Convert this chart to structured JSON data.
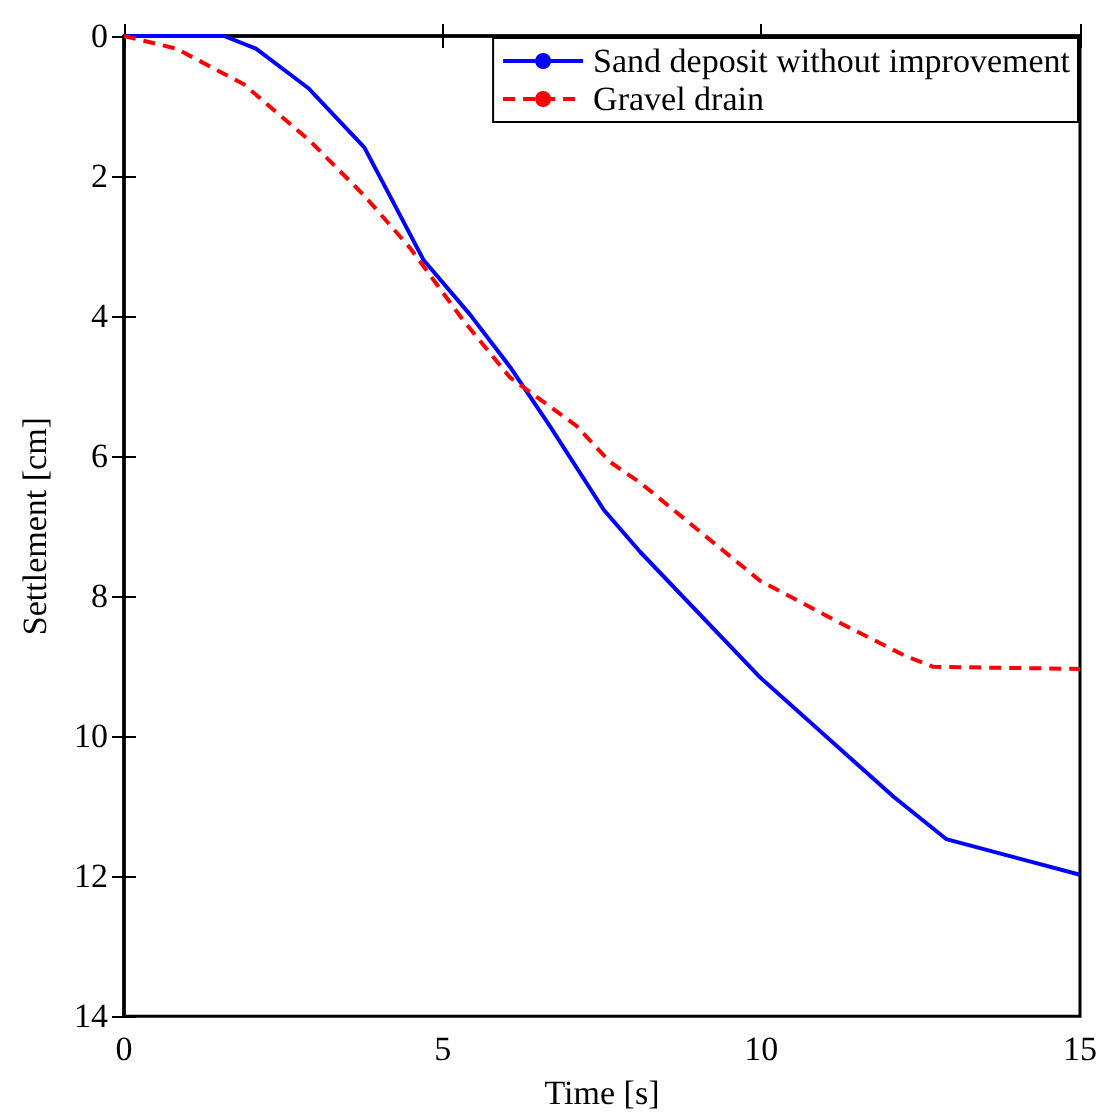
{
  "chart_data": {
    "type": "line",
    "xlabel": "Time [s]",
    "ylabel": "Settlement [cm]",
    "xlim": [
      0,
      15
    ],
    "xticks": [
      0,
      5,
      10,
      15
    ],
    "ylim": [
      14,
      0
    ],
    "yticks": [
      0,
      2,
      4,
      6,
      8,
      10,
      12,
      14
    ],
    "grid": false,
    "legend": "top right",
    "marker": "none",
    "series": [
      {
        "name": "Sand deposit without improvement",
        "color": "#0000ff",
        "line_style": "solid",
        "x": [
          0,
          1.57,
          2.07,
          2.9,
          3.77,
          4.17,
          4.7,
          5.43,
          6.06,
          6.68,
          7.53,
          8.1,
          9.98,
          12.08,
          12.9,
          15
        ],
        "values": [
          0,
          0,
          0.18,
          0.75,
          1.59,
          2.28,
          3.2,
          3.98,
          4.73,
          5.57,
          6.77,
          7.37,
          9.16,
          10.87,
          11.47,
          11.98
        ]
      },
      {
        "name": "Gravel drain",
        "color": "#ff0000",
        "line_style": "dashed",
        "x": [
          0,
          0.82,
          1.88,
          2.92,
          3.77,
          4.49,
          5.33,
          6.06,
          7.1,
          7.62,
          8.1,
          9.98,
          11.23,
          12.27,
          12.7,
          15
        ],
        "values": [
          0,
          0.18,
          0.69,
          1.5,
          2.28,
          3.03,
          4.07,
          4.88,
          5.57,
          6.08,
          6.38,
          7.78,
          8.38,
          8.86,
          9.01,
          9.04
        ]
      }
    ]
  }
}
